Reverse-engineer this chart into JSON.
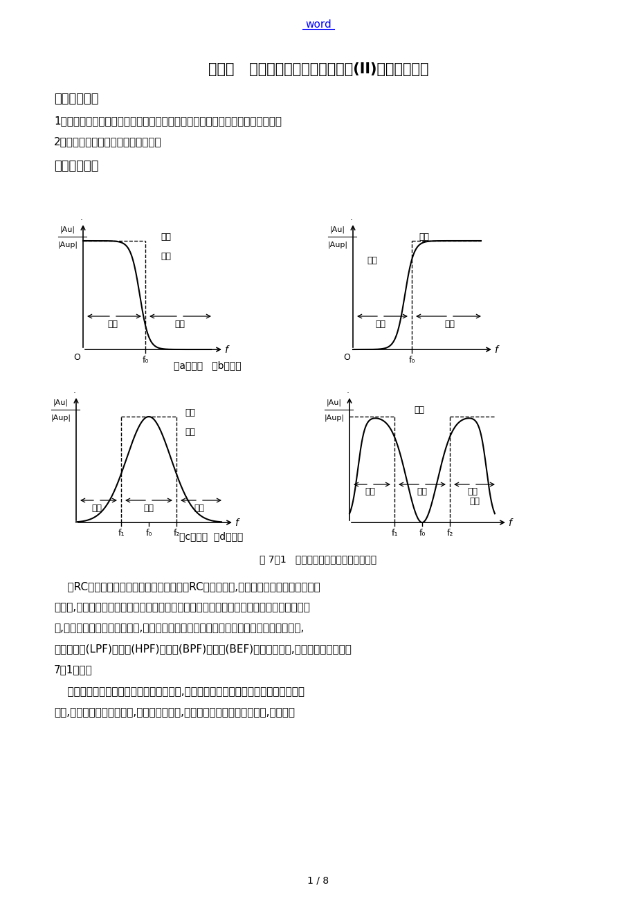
{
  "title": "实验七   集成运算放大器的基本应用(II)一有源滤波器",
  "header_word": "word",
  "section1_title": "一、实验目的",
  "section1_item1": "1、熟悉用运放、电阻和电容组成有源低通滤波、高通滤波和带通、带阻滤波器。",
  "section1_item2": "2、学会测量有源滤波器的幅频特性。",
  "section2_title": "二、实验原理",
  "fig_caption": "图 7－1   四种滤波电路的幅频特性示意图",
  "sub_caption_ab": "（a）低通   （b）高通",
  "sub_caption_cd": "（c）带通  （d）带阻",
  "para1_lines": [
    "    由RC元件与运算放大器组成的滤波器称为RC有源滤波器,其功能是让一定频率范围的信",
    "号通过,抑制或急剧衰减此频率范围以外的信号。可用在信息处理、数据传输、抑制干扰等方",
    "面,但因受运算放大器频带限制,这类滤波器主要用于低频围。根据对频率范围的选择不同,",
    "可分为低通(LPF)、高通(HPF)、带通(BPF)与带阻(BEF)等四种滤波器,它们的幅频特性如图",
    "7－1所示。"
  ],
  "para2_lines": [
    "    具有理想幅频特性的滤波器是很难实现的,只能用实际的幅频特性去逼近理想的。一般",
    "来说,滤波器的幅频特性越好,其相频特性越差,反之亦然。滤波器的阶数越高,幅频特性"
  ],
  "page_num": "1 / 8",
  "bg_color": "#ffffff",
  "text_color": "#000000",
  "link_color": "#0000ff"
}
